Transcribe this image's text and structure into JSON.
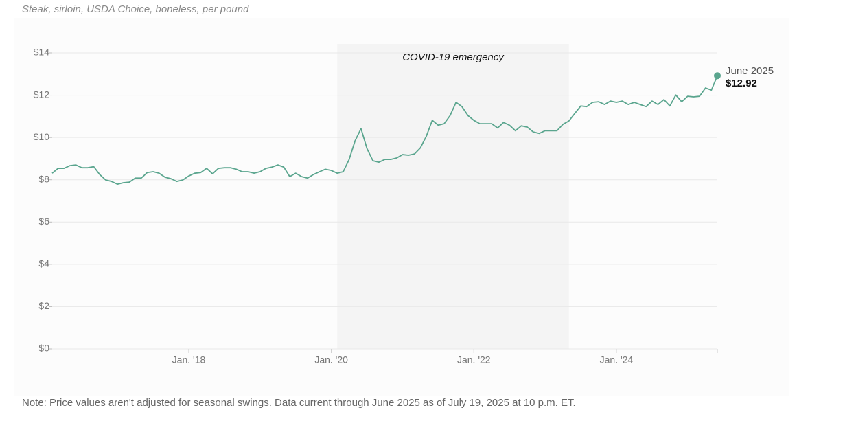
{
  "chart_data": {
    "type": "line",
    "subtitle": "Steak, sirloin, USDA Choice, boneless, per pound",
    "note": "Note: Price values aren't adjusted for seasonal swings. Data current through June 2025 as of July 19, 2025 at 10 p.m. ET.",
    "x": [
      "2016-02",
      "2016-03",
      "2016-04",
      "2016-05",
      "2016-06",
      "2016-07",
      "2016-08",
      "2016-09",
      "2016-10",
      "2016-11",
      "2016-12",
      "2017-01",
      "2017-02",
      "2017-03",
      "2017-04",
      "2017-05",
      "2017-06",
      "2017-07",
      "2017-08",
      "2017-09",
      "2017-10",
      "2017-11",
      "2017-12",
      "2018-01",
      "2018-02",
      "2018-03",
      "2018-04",
      "2018-05",
      "2018-06",
      "2018-07",
      "2018-08",
      "2018-09",
      "2018-10",
      "2018-11",
      "2018-12",
      "2019-01",
      "2019-02",
      "2019-03",
      "2019-04",
      "2019-05",
      "2019-06",
      "2019-07",
      "2019-08",
      "2019-09",
      "2019-10",
      "2019-11",
      "2019-12",
      "2020-01",
      "2020-02",
      "2020-03",
      "2020-04",
      "2020-05",
      "2020-06",
      "2020-07",
      "2020-08",
      "2020-09",
      "2020-10",
      "2020-11",
      "2020-12",
      "2021-01",
      "2021-02",
      "2021-03",
      "2021-04",
      "2021-05",
      "2021-06",
      "2021-07",
      "2021-08",
      "2021-09",
      "2021-10",
      "2021-11",
      "2021-12",
      "2022-01",
      "2022-02",
      "2022-03",
      "2022-04",
      "2022-05",
      "2022-06",
      "2022-07",
      "2022-08",
      "2022-09",
      "2022-10",
      "2022-11",
      "2022-12",
      "2023-01",
      "2023-02",
      "2023-03",
      "2023-04",
      "2023-05",
      "2023-06",
      "2023-07",
      "2023-08",
      "2023-09",
      "2023-10",
      "2023-11",
      "2023-12",
      "2024-01",
      "2024-02",
      "2024-03",
      "2024-04",
      "2024-05",
      "2024-06",
      "2024-07",
      "2024-08",
      "2024-09",
      "2024-10",
      "2024-11",
      "2024-12",
      "2025-01",
      "2025-02",
      "2025-03",
      "2025-04",
      "2025-05",
      "2025-06"
    ],
    "series": [
      {
        "name": "Steak, sirloin",
        "color": "#5aa58e",
        "values": [
          8.31,
          8.54,
          8.54,
          8.67,
          8.7,
          8.57,
          8.57,
          8.62,
          8.25,
          7.99,
          7.92,
          7.79,
          7.86,
          7.89,
          8.08,
          8.08,
          8.34,
          8.38,
          8.31,
          8.12,
          8.05,
          7.92,
          7.99,
          8.18,
          8.31,
          8.34,
          8.54,
          8.28,
          8.54,
          8.57,
          8.57,
          8.5,
          8.38,
          8.38,
          8.31,
          8.38,
          8.54,
          8.6,
          8.7,
          8.6,
          8.15,
          8.31,
          8.15,
          8.08,
          8.25,
          8.38,
          8.5,
          8.44,
          8.31,
          8.38,
          8.96,
          9.84,
          10.42,
          9.48,
          8.9,
          8.83,
          8.96,
          8.96,
          9.03,
          9.19,
          9.16,
          9.22,
          9.51,
          10.06,
          10.81,
          10.58,
          10.65,
          11.04,
          11.66,
          11.46,
          11.04,
          10.81,
          10.65,
          10.65,
          10.65,
          10.45,
          10.71,
          10.58,
          10.32,
          10.55,
          10.49,
          10.26,
          10.19,
          10.32,
          10.32,
          10.32,
          10.62,
          10.78,
          11.14,
          11.49,
          11.46,
          11.66,
          11.69,
          11.56,
          11.72,
          11.66,
          11.72,
          11.56,
          11.66,
          11.56,
          11.46,
          11.72,
          11.56,
          11.79,
          11.49,
          12.01,
          11.69,
          11.95,
          11.92,
          11.95,
          12.34,
          12.24,
          12.92
        ]
      }
    ],
    "last_point": {
      "label": "June 2025",
      "value_label": "$12.92"
    },
    "shade": {
      "label": "COVID-19 emergency",
      "start": "2020-02",
      "end": "2023-05"
    },
    "xlim": [
      "2016-02",
      "2025-06"
    ],
    "xticks": [
      {
        "value": "2018-01",
        "label": "Jan. '18"
      },
      {
        "value": "2020-01",
        "label": "Jan. '20"
      },
      {
        "value": "2022-01",
        "label": "Jan. '22"
      },
      {
        "value": "2024-01",
        "label": "Jan. '24"
      }
    ],
    "ylim": [
      0,
      14
    ],
    "yticks": [
      {
        "value": 0,
        "label": "$0"
      },
      {
        "value": 2,
        "label": "$2"
      },
      {
        "value": 4,
        "label": "$4"
      },
      {
        "value": 6,
        "label": "$6"
      },
      {
        "value": 8,
        "label": "$8"
      },
      {
        "value": 10,
        "label": "$10"
      },
      {
        "value": 12,
        "label": "$12"
      },
      {
        "value": 14,
        "label": "$14"
      }
    ],
    "grid": true
  }
}
